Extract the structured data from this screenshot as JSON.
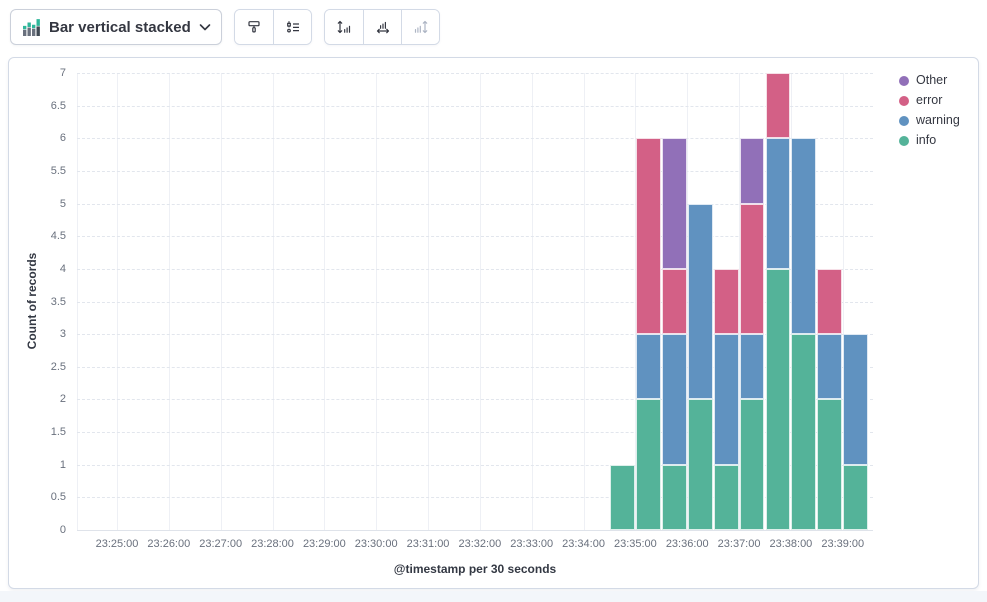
{
  "toolbar": {
    "chart_type_label": "Bar vertical stacked"
  },
  "chart_data": {
    "type": "bar",
    "stacked": true,
    "orientation": "vertical",
    "title": "",
    "xlabel": "@timestamp per 30 seconds",
    "ylabel": "Count of records",
    "ylim": [
      0,
      7
    ],
    "y_ticks": [
      0,
      0.5,
      1,
      1.5,
      2,
      2.5,
      3,
      3.5,
      4,
      4.5,
      5,
      5.5,
      6,
      6.5,
      7
    ],
    "x_ticks": [
      "23:25:00",
      "23:26:00",
      "23:27:00",
      "23:28:00",
      "23:29:00",
      "23:30:00",
      "23:31:00",
      "23:32:00",
      "23:33:00",
      "23:34:00",
      "23:35:00",
      "23:36:00",
      "23:37:00",
      "23:38:00",
      "23:39:00"
    ],
    "bucket_interval_seconds": 30,
    "grid": true,
    "categories": [
      "23:34:30",
      "23:35:00",
      "23:35:30",
      "23:36:00",
      "23:36:30",
      "23:37:00",
      "23:37:30",
      "23:38:00",
      "23:38:30",
      "23:39:00"
    ],
    "series": [
      {
        "name": "info",
        "color": "#54B399",
        "values": [
          1,
          2,
          1,
          2,
          1,
          2,
          4,
          3,
          2,
          1
        ]
      },
      {
        "name": "warning",
        "color": "#6092C0",
        "values": [
          0,
          1,
          2,
          3,
          2,
          1,
          2,
          3,
          1,
          2
        ]
      },
      {
        "name": "error",
        "color": "#D36086",
        "values": [
          0,
          3,
          1,
          0,
          1,
          2,
          1,
          0,
          1,
          0
        ]
      },
      {
        "name": "Other",
        "color": "#9170B8",
        "values": [
          0,
          0,
          2,
          0,
          0,
          1,
          0,
          0,
          0,
          0
        ]
      }
    ],
    "legend": {
      "position": "right",
      "items": [
        {
          "label": "Other",
          "color": "#9170B8"
        },
        {
          "label": "error",
          "color": "#D36086"
        },
        {
          "label": "warning",
          "color": "#6092C0"
        },
        {
          "label": "info",
          "color": "#54B399"
        }
      ]
    }
  }
}
